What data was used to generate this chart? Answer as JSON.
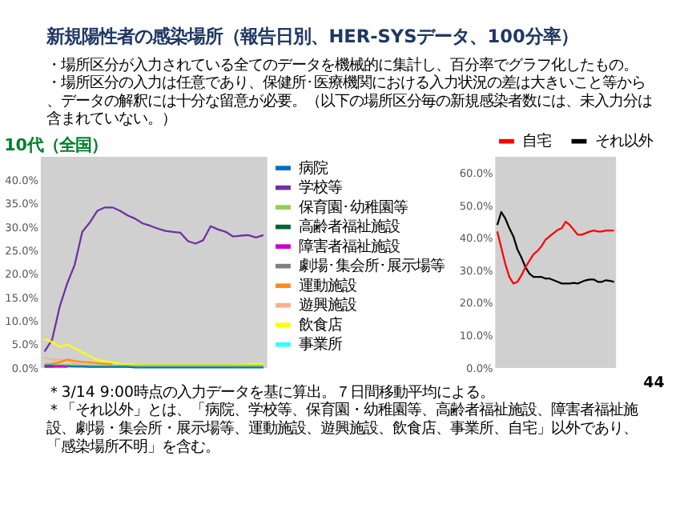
{
  "chart_data": [
    {
      "type": "line",
      "title": "新規陽性者の感染場所（報告日別、HER-SYSデータ、100分率）",
      "subtitle": "10代（全国）",
      "annotations": [
        "・場所区分が入力されている全てのデータを機械的に集計し、百分率でグラフ化したもの。",
        "・場所区分の入力は任意であり、保健所･医療機関における入力状況の差は大きいこと等から、データの解釈には十分な留意が必要。（以下の場所区分毎の新規感染者数には、未入力分は含まれていない。）",
        "＊3/14 9:00時点の入力データを基に算出。７日間移動平均による。",
        "＊「それ以外」とは、「病院、学校等、保育園・幼稚園等、高齢者福祉施設、障害者福祉施設、劇場・集会所・展示場等、運動施設、遊興施設、飲食店、事業所、自宅」以外であり、「感染場所不明」を含む。",
        "44"
      ],
      "categories": [
        null,
        null,
        null,
        null,
        null,
        null,
        null,
        null,
        null,
        null,
        null,
        null,
        null,
        null,
        null,
        null,
        null,
        null,
        null,
        null,
        null,
        null,
        null,
        null,
        null,
        null,
        null,
        null,
        null,
        null
      ],
      "ylim": [
        0,
        45
      ],
      "yticks": [
        {
          "value": 0,
          "label": "0.0%"
        },
        {
          "value": 5,
          "label": "5.0%"
        },
        {
          "value": 10,
          "label": "10.0%"
        },
        {
          "value": 15,
          "label": "15.0%"
        },
        {
          "value": 20,
          "label": "20.0%"
        },
        {
          "value": 25,
          "label": "25.0%"
        },
        {
          "value": 30,
          "label": "30.0%"
        },
        {
          "value": 35,
          "label": "35.0%"
        },
        {
          "value": 40,
          "label": "40.0%"
        }
      ],
      "tick_labels": "y",
      "grid": false,
      "legend": "top",
      "marker": "none",
      "line_style": "solid",
      "series": [
        {
          "name": "病院",
          "color": "#0070c0",
          "values": [
            0.5,
            0.5,
            0.4,
            0.4,
            0.3,
            0.3,
            0.2,
            0.2,
            0.2,
            0.2,
            0.2,
            0.2,
            0.1,
            0.1,
            0.1,
            0.1,
            0.1,
            0.1,
            0.1,
            0.1,
            0.1,
            0.1,
            0.1,
            0.1,
            0.1,
            0.1,
            0.1,
            0.1,
            0.1,
            0.1
          ]
        },
        {
          "name": "学校等",
          "color": "#7030a0",
          "values": [
            3.5,
            6,
            13,
            18,
            22,
            29,
            31,
            33.5,
            34.2,
            34.2,
            33.5,
            32.5,
            31.8,
            30.8,
            30.3,
            29.7,
            29.2,
            29,
            28.8,
            27,
            26.5,
            27.2,
            30.2,
            29.5,
            29,
            28,
            28.2,
            28.3,
            27.8,
            28.3
          ]
        },
        {
          "name": "保育園･幼稚園等",
          "color": "#92d050",
          "values": [
            0.7,
            0.7,
            0.6,
            0.6,
            0.6,
            0.5,
            0.5,
            0.5,
            0.5,
            0.5,
            0.5,
            0.5,
            0.5,
            0.5,
            0.5,
            0.5,
            0.5,
            0.5,
            0.5,
            0.5,
            0.5,
            0.5,
            0.5,
            0.5,
            0.5,
            0.5,
            0.5,
            0.5,
            0.5,
            0.5
          ]
        },
        {
          "name": "高齢者福祉施設",
          "color": "#00642d",
          "values": [
            null,
            null,
            null,
            null,
            null,
            null,
            null,
            null,
            null,
            null,
            null,
            null,
            null,
            null,
            null,
            null,
            null,
            null,
            null,
            null,
            null,
            null,
            null,
            null,
            null,
            null,
            null,
            null,
            null,
            null
          ]
        },
        {
          "name": "障害者福祉施設",
          "color": "#cc00cc",
          "values": [
            0.2,
            0.2,
            0.3,
            0.2,
            null,
            null,
            null,
            null,
            null,
            null,
            null,
            null,
            null,
            null,
            null,
            null,
            null,
            null,
            null,
            null,
            null,
            null,
            null,
            null,
            null,
            null,
            null,
            null,
            null,
            null
          ]
        },
        {
          "name": "劇場･集会所･展示場等",
          "color": "#808080",
          "values": [
            null,
            0.3,
            0.5,
            0.3,
            null,
            null,
            null,
            null,
            null,
            null,
            null,
            null,
            null,
            null,
            null,
            null,
            null,
            null,
            null,
            null,
            null,
            null,
            null,
            null,
            null,
            null,
            null,
            null,
            null,
            null
          ]
        },
        {
          "name": "運動施設",
          "color": "#ff8c1a",
          "values": [
            0.8,
            0.9,
            1.2,
            1.8,
            1.5,
            1.3,
            1.2,
            1,
            0.9,
            0.8,
            null,
            null,
            null,
            null,
            null,
            null,
            null,
            null,
            null,
            null,
            null,
            null,
            null,
            null,
            null,
            null,
            null,
            null,
            null,
            null
          ]
        },
        {
          "name": "遊興施設",
          "color": "#f8b08c",
          "values": [
            2.2,
            1.8,
            1.7,
            1.5,
            1,
            0.7,
            0.5,
            0.4,
            null,
            null,
            null,
            null,
            null,
            null,
            null,
            null,
            null,
            null,
            null,
            null,
            null,
            null,
            null,
            null,
            null,
            null,
            null,
            null,
            null,
            null
          ]
        },
        {
          "name": "飲食店",
          "color": "#ffff00",
          "values": [
            6.2,
            5.5,
            4.5,
            5,
            4.2,
            3.3,
            2.5,
            1.7,
            1.4,
            1.1,
            0.9,
            0.8,
            0.7,
            0.6,
            0.6,
            0.6,
            0.6,
            0.6,
            0.6,
            0.6,
            0.6,
            0.6,
            0.6,
            0.6,
            0.6,
            0.6,
            0.7,
            0.8,
            0.9,
            0.8
          ]
        },
        {
          "name": "事業所",
          "color": "#33ffff",
          "values": [
            null,
            null,
            null,
            null,
            null,
            null,
            null,
            null,
            null,
            null,
            null,
            null,
            null,
            null,
            null,
            null,
            null,
            null,
            null,
            null,
            null,
            null,
            null,
            null,
            null,
            null,
            null,
            null,
            null,
            null
          ]
        }
      ]
    },
    {
      "type": "line",
      "categories": [
        null,
        null,
        null,
        null,
        null,
        null,
        null,
        null,
        null,
        null,
        null,
        null,
        null,
        null,
        null,
        null,
        null,
        null,
        null,
        null,
        null,
        null,
        null,
        null,
        null,
        null,
        null,
        null,
        null,
        null
      ],
      "ylim": [
        0,
        65
      ],
      "yticks": [
        {
          "value": 0,
          "label": "0.0%"
        },
        {
          "value": 10,
          "label": "10.0%"
        },
        {
          "value": 20,
          "label": "20.0%"
        },
        {
          "value": 30,
          "label": "30.0%"
        },
        {
          "value": 40,
          "label": "40.0%"
        },
        {
          "value": 50,
          "label": "50.0%"
        },
        {
          "value": 60,
          "label": "60.0%"
        }
      ],
      "tick_labels": "y",
      "grid": false,
      "legend": "top",
      "marker": "none",
      "line_style": "solid",
      "series": [
        {
          "name": "自宅",
          "color": "#ff0000",
          "values": [
            42,
            37,
            32,
            28,
            26,
            26.5,
            28.5,
            31,
            33,
            35,
            36,
            37.5,
            39.5,
            40.5,
            41.5,
            42.5,
            43,
            45,
            44,
            42.5,
            41,
            41,
            41.5,
            42,
            42.3,
            42,
            42,
            42.3,
            42.3,
            42.3
          ]
        },
        {
          "name": "それ以外",
          "color": "#000000",
          "values": [
            44,
            48,
            46,
            43,
            40.5,
            36.5,
            34,
            31,
            29,
            28,
            28,
            28,
            27.5,
            27.5,
            27,
            26.5,
            26,
            26,
            26,
            26.2,
            26,
            26.5,
            27,
            27.2,
            27.2,
            26.5,
            26.5,
            27,
            26.8,
            26.5
          ]
        }
      ]
    }
  ]
}
